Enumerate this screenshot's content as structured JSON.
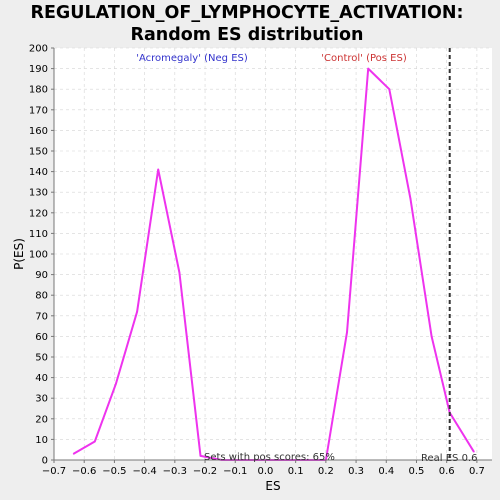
{
  "chart_data": {
    "type": "line",
    "title_line1": "REGULATION_OF_LYMPHOCYTE_ACTIVATION:",
    "title_line2": "Random ES distribution",
    "xlabel": "ES",
    "ylabel": "P(ES)",
    "xlim": [
      -0.7,
      0.75
    ],
    "ylim": [
      0,
      200
    ],
    "xticks": [
      -0.7,
      -0.6,
      -0.5,
      -0.4,
      -0.3,
      -0.2,
      -0.1,
      0.0,
      0.1,
      0.2,
      0.3,
      0.4,
      0.5,
      0.6,
      0.7
    ],
    "xtick_labels": [
      "−0.7",
      "−0.6",
      "−0.5",
      "−0.4",
      "−0.3",
      "−0.2",
      "−0.1",
      "0.0",
      "0.1",
      "0.2",
      "0.3",
      "0.4",
      "0.5",
      "0.6",
      "0.7"
    ],
    "yticks": [
      0,
      10,
      20,
      30,
      40,
      50,
      60,
      70,
      80,
      90,
      100,
      110,
      120,
      130,
      140,
      150,
      160,
      170,
      180,
      190,
      200
    ],
    "grid": true,
    "series": [
      {
        "color": "#ee33ee",
        "x": [
          -0.635,
          -0.565,
          -0.495,
          -0.425,
          -0.355,
          -0.285,
          -0.215,
          -0.145,
          0.2,
          0.27,
          0.34,
          0.41,
          0.48,
          0.55,
          0.61,
          0.69
        ],
        "y": [
          3,
          9,
          37,
          72,
          141,
          91,
          2,
          0,
          0,
          62,
          190,
          180,
          127,
          60,
          23,
          4
        ]
      }
    ],
    "real_es": 0.61,
    "annotations": {
      "neg_label": "'Acromegaly' (Neg ES)",
      "neg_color": "#3333cc",
      "pos_label": "'Control' (Pos ES)",
      "pos_color": "#cc3333",
      "sets_label": "Sets with pos scores: 65%",
      "real_label": "Real ES 0.6"
    }
  }
}
